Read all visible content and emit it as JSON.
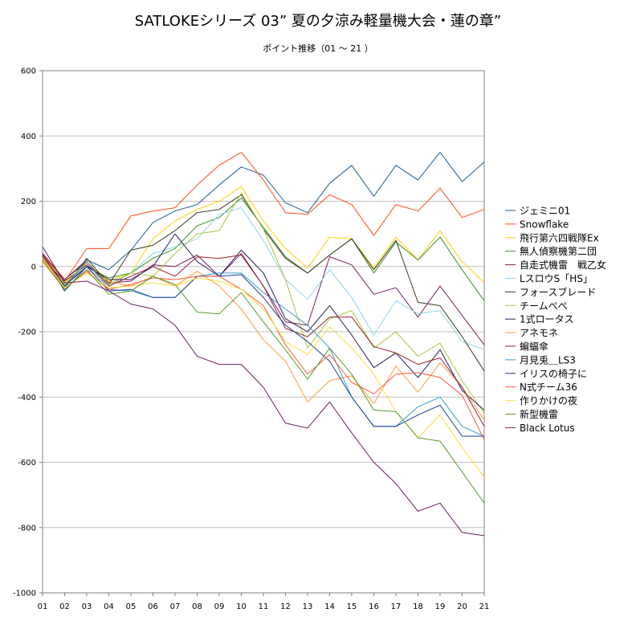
{
  "chart_data": {
    "type": "line",
    "title": "SATLOKEシリーズ 03” 夏の夕涼み軽量機大会・蓮の章”",
    "subtitle": "ポイント推移（01 ～ 21 ）",
    "xlabel": "",
    "ylabel": "",
    "categories": [
      "01",
      "02",
      "03",
      "04",
      "05",
      "06",
      "07",
      "08",
      "09",
      "10",
      "11",
      "12",
      "13",
      "14",
      "15",
      "16",
      "17",
      "18",
      "19",
      "20",
      "21"
    ],
    "ylim": [
      -1000,
      600
    ],
    "yticks": [
      600,
      400,
      200,
      0,
      -200,
      -400,
      -600,
      -800,
      -1000
    ],
    "grid": "horizontal",
    "legend_position": "right",
    "series": [
      {
        "name": "ジェミニ01",
        "color": "#1f5f8f",
        "values": [
          40,
          -40,
          20,
          -10,
          50,
          135,
          170,
          190,
          250,
          305,
          280,
          195,
          165,
          255,
          310,
          215,
          310,
          265,
          350,
          260,
          320
        ]
      },
      {
        "name": "Snowflake",
        "color": "#ff4a1a",
        "values": [
          35,
          -45,
          55,
          55,
          155,
          170,
          180,
          250,
          310,
          350,
          265,
          165,
          160,
          220,
          190,
          95,
          190,
          170,
          240,
          150,
          175
        ]
      },
      {
        "name": "飛行第六四戦隊Ex",
        "color": "#ffd200",
        "values": [
          30,
          -50,
          10,
          -45,
          -20,
          85,
          140,
          175,
          200,
          245,
          140,
          55,
          -5,
          90,
          85,
          -5,
          90,
          20,
          110,
          15,
          -50
        ]
      },
      {
        "name": "無人偵察機第二団",
        "color": "#3f8f2f",
        "values": [
          25,
          -55,
          0,
          -35,
          -20,
          25,
          55,
          125,
          150,
          210,
          120,
          30,
          -20,
          35,
          85,
          -20,
          75,
          20,
          90,
          -10,
          -105
        ]
      },
      {
        "name": "自走式機雷　戦乙女",
        "color": "#7a1f5f",
        "values": [
          20,
          -45,
          5,
          -50,
          -45,
          5,
          0,
          35,
          -30,
          40,
          -60,
          -170,
          -180,
          30,
          5,
          -85,
          -65,
          -155,
          -60,
          -150,
          -240
        ]
      },
      {
        "name": "LスロウS「HS」",
        "color": "#8ed3ef",
        "values": [
          25,
          -60,
          0,
          -60,
          -20,
          40,
          60,
          85,
          160,
          180,
          80,
          -40,
          -100,
          -10,
          -95,
          -210,
          -105,
          -145,
          -135,
          -230,
          -255
        ]
      },
      {
        "name": "フォースブレード",
        "color": "#3f3a1f",
        "values": [
          30,
          -65,
          25,
          -55,
          50,
          65,
          110,
          165,
          175,
          220,
          115,
          25,
          -20,
          35,
          85,
          -10,
          80,
          -110,
          -120,
          -215,
          -320
        ]
      },
      {
        "name": "チームぺぺ",
        "color": "#a8c840",
        "values": [
          20,
          -55,
          15,
          -55,
          -20,
          -30,
          40,
          100,
          110,
          225,
          115,
          -40,
          -250,
          -160,
          -135,
          -250,
          -200,
          -275,
          -235,
          -350,
          -450
        ]
      },
      {
        "name": "1式ロータス",
        "color": "#2a1f5f",
        "values": [
          35,
          -60,
          0,
          -40,
          -40,
          0,
          100,
          15,
          -30,
          50,
          -20,
          -160,
          -200,
          -120,
          -210,
          -310,
          -265,
          -340,
          -255,
          -380,
          -440
        ]
      },
      {
        "name": "アネモネ",
        "color": "#ff9a3f",
        "values": [
          15,
          -70,
          -10,
          -45,
          -60,
          -30,
          -60,
          -15,
          -60,
          -130,
          -225,
          -290,
          -415,
          -350,
          -335,
          -420,
          -305,
          -385,
          -295,
          -370,
          -470
        ]
      },
      {
        "name": "蝙蝠傘",
        "color": "#9a1f2f",
        "values": [
          40,
          -40,
          15,
          -60,
          -30,
          0,
          -30,
          30,
          25,
          35,
          -60,
          -190,
          -215,
          -155,
          -155,
          -245,
          -265,
          -300,
          -280,
          -370,
          -490
        ]
      },
      {
        "name": "月見兎＿LS3",
        "color": "#3a9acf",
        "values": [
          30,
          -65,
          15,
          -70,
          -75,
          -95,
          -95,
          -30,
          -20,
          -20,
          -80,
          -130,
          -180,
          -250,
          -400,
          -490,
          -490,
          -430,
          -400,
          -490,
          -520
        ]
      },
      {
        "name": "イリスの椅子に",
        "color": "#1a3f8f",
        "values": [
          35,
          -75,
          0,
          -75,
          -70,
          -95,
          -95,
          -30,
          -30,
          -25,
          -95,
          -180,
          -230,
          -290,
          -400,
          -490,
          -490,
          -455,
          -425,
          -520,
          -520
        ]
      },
      {
        "name": "N式チーム36",
        "color": "#ff5a3a",
        "values": [
          30,
          -65,
          -15,
          -70,
          -55,
          -35,
          -40,
          -30,
          -30,
          -70,
          -120,
          -240,
          -330,
          -270,
          -355,
          -390,
          -330,
          -325,
          -340,
          -395,
          -530
        ]
      },
      {
        "name": "作りかけの夜",
        "color": "#ffdc3a",
        "values": [
          25,
          -65,
          -20,
          -65,
          -60,
          -50,
          -60,
          -35,
          -45,
          -70,
          -130,
          -230,
          -270,
          -185,
          -250,
          -330,
          -445,
          -525,
          -455,
          -555,
          -645
        ]
      },
      {
        "name": "新型機雷",
        "color": "#5a9a2f",
        "values": [
          20,
          -70,
          -10,
          -85,
          -75,
          -30,
          -55,
          -140,
          -145,
          -80,
          -170,
          -255,
          -345,
          -250,
          -330,
          -440,
          -445,
          -525,
          -535,
          -630,
          -725
        ]
      },
      {
        "name": "Black Lotus",
        "color": "#6a1f5f",
        "values": [
          60,
          -50,
          -45,
          -75,
          -115,
          -130,
          -180,
          -275,
          -300,
          -300,
          -370,
          -480,
          -495,
          -415,
          -510,
          -600,
          -665,
          -750,
          -725,
          -815,
          -825
        ]
      }
    ]
  }
}
